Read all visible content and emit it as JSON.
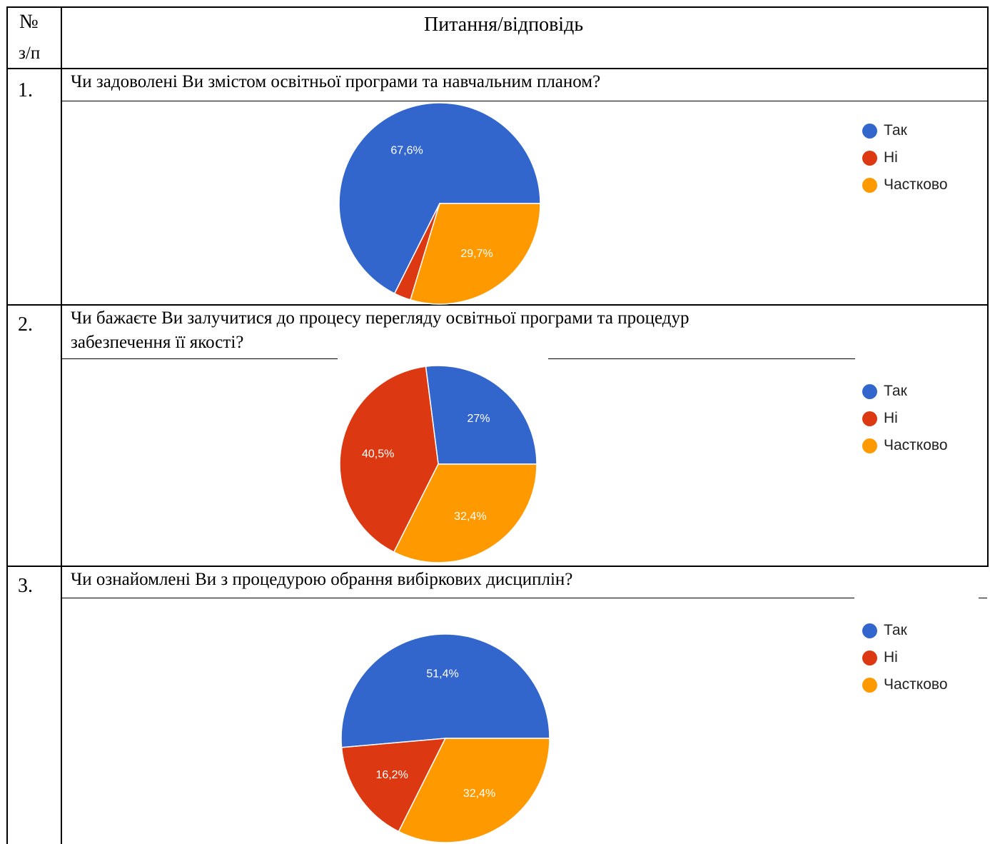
{
  "header": {
    "num_label": "№",
    "num_label_2": "з/п",
    "title": "Питання/відповідь"
  },
  "legend_colors": {
    "Так": "#3366CC",
    "Ні": "#DC3912",
    "Частково": "#FF9900"
  },
  "questions": [
    {
      "number": "1.",
      "text_lines": [
        "Чи задоволені Ви змістом освітньої програми та навчальним планом?"
      ]
    },
    {
      "number": "2.",
      "text_lines": [
        "Чи бажаєте Ви залучитися до процесу перегляду освітньої програми та процедур",
        "забезпечення її якості?"
      ]
    },
    {
      "number": "3.",
      "text_lines": [
        "Чи ознайомлені Ви з процедурою обрання вибіркових дисциплін?"
      ]
    }
  ],
  "chart_data": [
    {
      "type": "pie",
      "categories": [
        "Так",
        "Ні",
        "Частково"
      ],
      "values": [
        67.6,
        2.7,
        29.7
      ],
      "labels": [
        "67,6%",
        "",
        "29,7%"
      ],
      "colors": [
        "#3366CC",
        "#DC3912",
        "#FF9900"
      ],
      "legend": "right"
    },
    {
      "type": "pie",
      "categories": [
        "Так",
        "Ні",
        "Частково"
      ],
      "values": [
        27.0,
        40.5,
        32.4
      ],
      "labels": [
        "27%",
        "40,5%",
        "32,4%"
      ],
      "colors": [
        "#3366CC",
        "#DC3912",
        "#FF9900"
      ],
      "legend": "right"
    },
    {
      "type": "pie",
      "categories": [
        "Так",
        "Ні",
        "Частково"
      ],
      "values": [
        51.4,
        16.2,
        32.4
      ],
      "labels": [
        "51,4%",
        "16,2%",
        "32,4%"
      ],
      "colors": [
        "#3366CC",
        "#DC3912",
        "#FF9900"
      ],
      "legend": "right"
    }
  ]
}
